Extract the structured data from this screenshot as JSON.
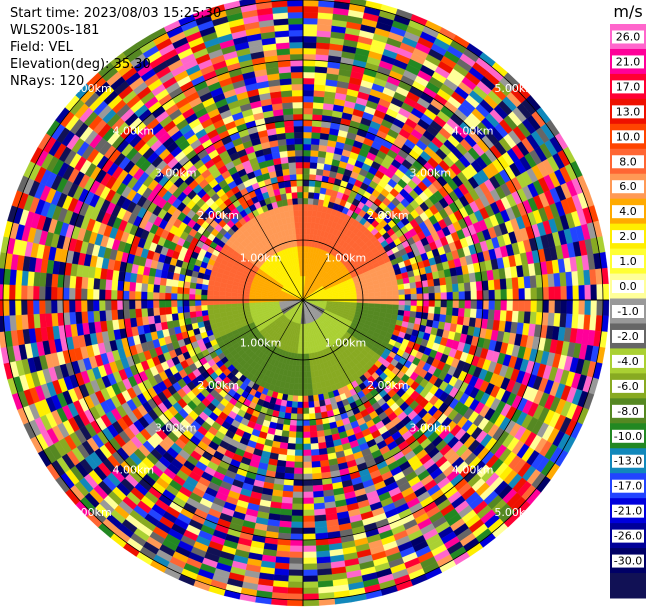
{
  "header": {
    "start_time": "Start time: 2023/08/03 15:25:30",
    "instrument": "WLS200s-181",
    "field": "Field: VEL",
    "elevation": "Elevation(deg): 35.30",
    "nrays": "NRays: 120"
  },
  "chart_data": {
    "type": "heatmap",
    "projection": "polar-ppi",
    "field": "VEL",
    "units": "m/s",
    "elevation_deg": 35.3,
    "n_rays": 120,
    "range_rings_km": [
      1,
      2,
      3,
      4,
      5
    ],
    "range_ring_labels": [
      "1.00km",
      "2.00km",
      "3.00km",
      "4.00km",
      "5.00km"
    ],
    "max_range_km": 5.1,
    "velocity_structure": [
      {
        "range_km": [
          0.0,
          0.4
        ],
        "north_half": 3,
        "south_half": -2
      },
      {
        "range_km": [
          0.4,
          0.9
        ],
        "north_half": 4,
        "south_half": -4
      },
      {
        "range_km": [
          0.9,
          1.6
        ],
        "north_half": 8,
        "south_half": -7
      },
      {
        "range_km": [
          1.6,
          5.1
        ],
        "north_half": "noise",
        "south_half": "noise"
      }
    ],
    "colorbar": {
      "units": "m/s",
      "ticks": [
        26.0,
        21.0,
        17.0,
        13.0,
        10.0,
        8.0,
        6.0,
        4.0,
        2.0,
        1.0,
        0.0,
        -1.0,
        -2.0,
        -4.0,
        -6.0,
        -8.0,
        -10.0,
        -13.0,
        -17.0,
        -21.0,
        -26.0,
        -30.0
      ],
      "tick_labels": [
        "26.0",
        "21.0",
        "17.0",
        "13.0",
        "10.0",
        "8.0",
        "6.0",
        "4.0",
        "2.0",
        "1.0",
        "0.0",
        "-1.0",
        "-2.0",
        "-4.0",
        "-6.0",
        "-8.0",
        "-10.0",
        "-13.0",
        "-17.0",
        "-21.0",
        "-26.0",
        "-30.0"
      ],
      "colors": [
        "#ff66cc",
        "#ff0099",
        "#ff0033",
        "#ee1100",
        "#ff4400",
        "#ff6633",
        "#ff9955",
        "#ffaa00",
        "#ffee00",
        "#ffff33",
        "#ffff99",
        "#999999",
        "#666666",
        "#aad033",
        "#88aa22",
        "#558822",
        "#228822",
        "#1188bb",
        "#2244ff",
        "#0000dd",
        "#000099",
        "#000066",
        "#111155"
      ]
    }
  }
}
